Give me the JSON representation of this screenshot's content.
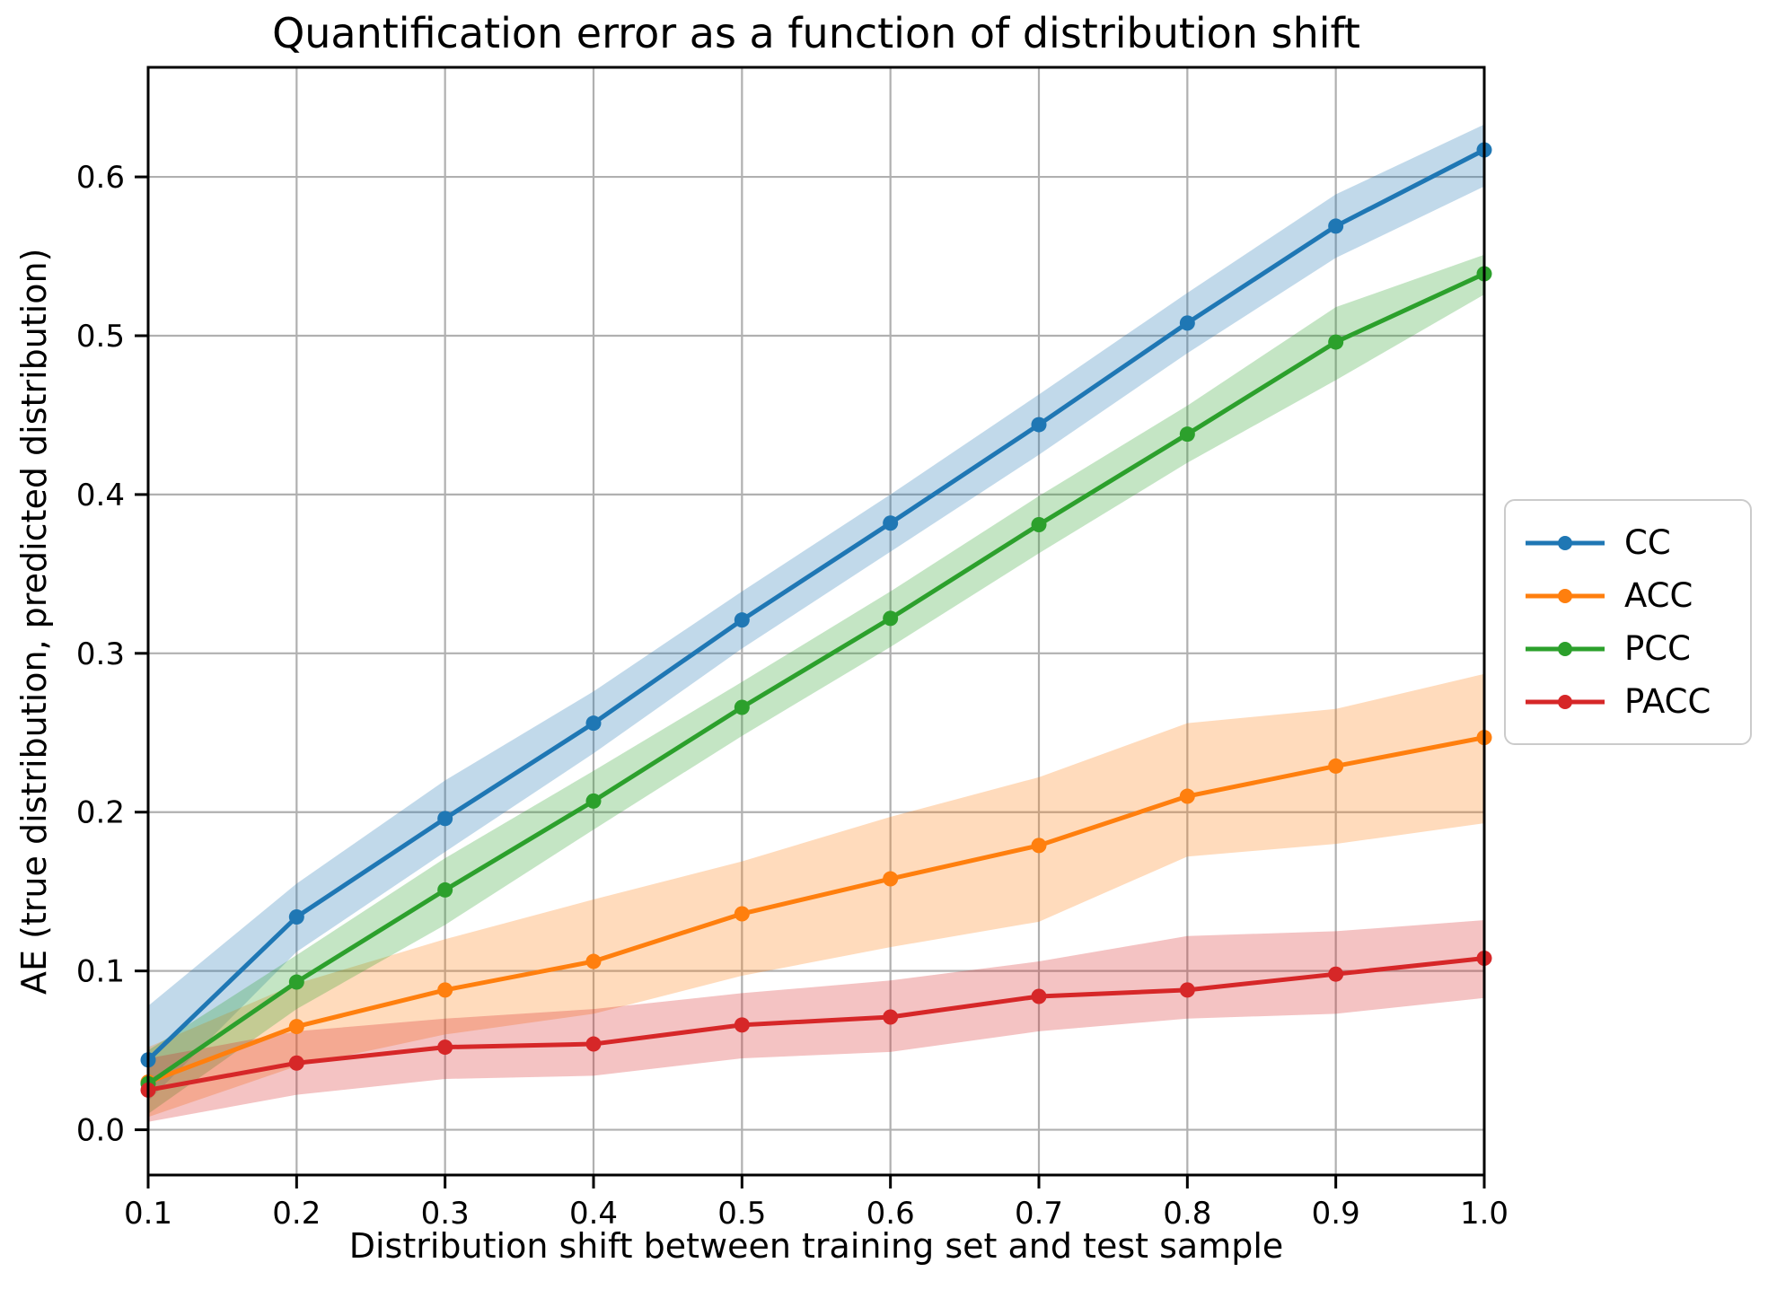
{
  "chart_data": {
    "type": "line",
    "title": "Quantification error as a function of distribution shift",
    "xlabel": "Distribution shift between training set and test sample",
    "ylabel": "AE (true distribution, predicted distribution)",
    "x": [
      0.1,
      0.2,
      0.3,
      0.4,
      0.5,
      0.6,
      0.7,
      0.8,
      0.9,
      1.0
    ],
    "x_ticks": [
      "0.1",
      "0.2",
      "0.3",
      "0.4",
      "0.5",
      "0.6",
      "0.7",
      "0.8",
      "0.9",
      "1.0"
    ],
    "y_ticks": [
      "0.0",
      "0.1",
      "0.2",
      "0.3",
      "0.4",
      "0.5",
      "0.6"
    ],
    "xlim": [
      0.1,
      1.0
    ],
    "ylim": [
      -0.0285,
      0.669
    ],
    "grid": true,
    "grid_color": "#b0b0b0",
    "frame_color": "#000000",
    "band_alpha": 0.28,
    "legend_position": "outside-right",
    "series": [
      {
        "name": "CC",
        "color": "#1f77b4",
        "values": [
          0.044,
          0.134,
          0.196,
          0.256,
          0.321,
          0.382,
          0.444,
          0.508,
          0.569,
          0.617
        ],
        "band_lower": [
          0.018,
          0.112,
          0.175,
          0.237,
          0.303,
          0.364,
          0.425,
          0.489,
          0.549,
          0.594
        ],
        "band_upper": [
          0.078,
          0.155,
          0.22,
          0.276,
          0.339,
          0.4,
          0.463,
          0.527,
          0.589,
          0.633
        ]
      },
      {
        "name": "ACC",
        "color": "#ff7f0e",
        "values": [
          0.03,
          0.065,
          0.088,
          0.106,
          0.136,
          0.158,
          0.179,
          0.21,
          0.229,
          0.247
        ],
        "band_lower": [
          0.008,
          0.04,
          0.06,
          0.073,
          0.097,
          0.115,
          0.131,
          0.172,
          0.18,
          0.193
        ],
        "band_upper": [
          0.052,
          0.092,
          0.12,
          0.145,
          0.169,
          0.197,
          0.222,
          0.256,
          0.265,
          0.287
        ]
      },
      {
        "name": "PCC",
        "color": "#2ca02c",
        "values": [
          0.029,
          0.093,
          0.151,
          0.207,
          0.266,
          0.322,
          0.381,
          0.438,
          0.496,
          0.539
        ],
        "band_lower": [
          0.01,
          0.076,
          0.129,
          0.189,
          0.248,
          0.304,
          0.363,
          0.42,
          0.472,
          0.526
        ],
        "band_upper": [
          0.05,
          0.11,
          0.171,
          0.226,
          0.282,
          0.339,
          0.399,
          0.456,
          0.518,
          0.551
        ]
      },
      {
        "name": "PACC",
        "color": "#d62728",
        "values": [
          0.025,
          0.042,
          0.052,
          0.054,
          0.066,
          0.071,
          0.084,
          0.088,
          0.098,
          0.108
        ],
        "band_lower": [
          0.005,
          0.022,
          0.032,
          0.034,
          0.045,
          0.049,
          0.062,
          0.07,
          0.073,
          0.083
        ],
        "band_upper": [
          0.045,
          0.062,
          0.07,
          0.076,
          0.086,
          0.094,
          0.106,
          0.122,
          0.125,
          0.132
        ]
      }
    ]
  }
}
